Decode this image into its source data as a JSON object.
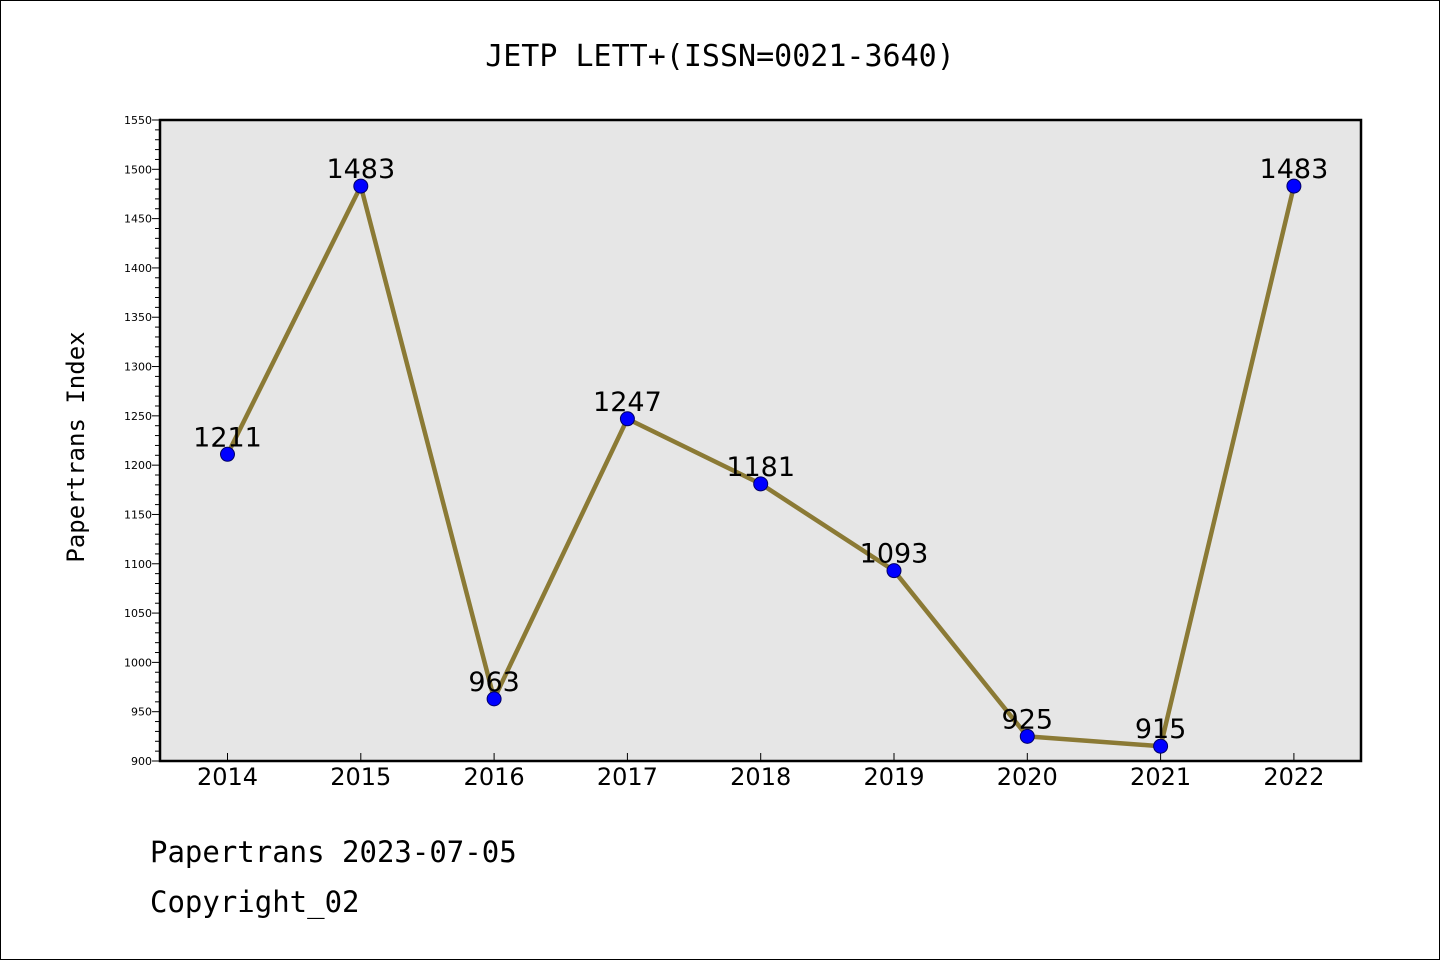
{
  "chart_data": {
    "type": "line",
    "title": "JETP LETT+(ISSN=0021-3640)",
    "xlabel": "",
    "ylabel": "Papertrans Index",
    "categories": [
      "2014",
      "2015",
      "2016",
      "2017",
      "2018",
      "2019",
      "2020",
      "2021",
      "2022"
    ],
    "series": [
      {
        "values": [
          1211,
          1483,
          963,
          1247,
          1181,
          1093,
          925,
          915,
          1483
        ]
      }
    ],
    "ylim": [
      900,
      1550
    ],
    "yticks": [
      900,
      950,
      1000,
      1050,
      1100,
      1150,
      1200,
      1250,
      1300,
      1350,
      1400,
      1450,
      1500,
      1550
    ],
    "grid": false,
    "legend": "none",
    "colors": {
      "line": "#8b7a35",
      "marker": "#0000ff",
      "plot_bg": "#e6e6e6"
    }
  },
  "footer": {
    "line1": "Papertrans 2023-07-05",
    "line2": "Copyright_02"
  }
}
